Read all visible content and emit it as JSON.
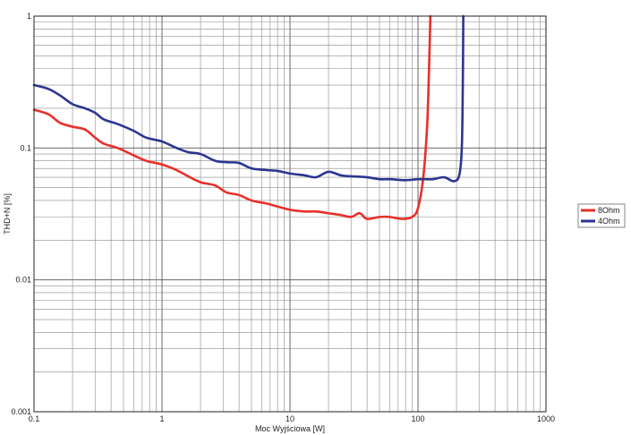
{
  "chart_data": {
    "type": "line",
    "title": "",
    "xlabel": "Moc Wyjściowa [W]",
    "ylabel": "THD+N [%]",
    "xscale": "log",
    "yscale": "log",
    "xlim": [
      0.1,
      1000
    ],
    "ylim": [
      0.001,
      1
    ],
    "grid": true,
    "legend_position": "right",
    "x_ticks": [
      "0.1",
      "1",
      "10",
      "100",
      "1000"
    ],
    "y_ticks": [
      "0.001",
      "0.01",
      "0.1",
      "1"
    ],
    "series": [
      {
        "name": "8Ohm",
        "color": "#e8302a",
        "points": [
          [
            0.1,
            0.195
          ],
          [
            0.13,
            0.18
          ],
          [
            0.16,
            0.155
          ],
          [
            0.2,
            0.145
          ],
          [
            0.25,
            0.138
          ],
          [
            0.3,
            0.12
          ],
          [
            0.35,
            0.108
          ],
          [
            0.45,
            0.1
          ],
          [
            0.6,
            0.088
          ],
          [
            0.75,
            0.08
          ],
          [
            1.0,
            0.075
          ],
          [
            1.3,
            0.068
          ],
          [
            1.6,
            0.061
          ],
          [
            2.0,
            0.055
          ],
          [
            2.6,
            0.052
          ],
          [
            3.2,
            0.046
          ],
          [
            4.0,
            0.044
          ],
          [
            5.0,
            0.04
          ],
          [
            6.5,
            0.038
          ],
          [
            8.0,
            0.036
          ],
          [
            10.0,
            0.034
          ],
          [
            13.0,
            0.033
          ],
          [
            16.0,
            0.033
          ],
          [
            20.0,
            0.032
          ],
          [
            25.0,
            0.031
          ],
          [
            30.0,
            0.03
          ],
          [
            35.0,
            0.032
          ],
          [
            40.0,
            0.029
          ],
          [
            50.0,
            0.03
          ],
          [
            60.0,
            0.03
          ],
          [
            75.0,
            0.029
          ],
          [
            90.0,
            0.03
          ],
          [
            100.0,
            0.035
          ],
          [
            110.0,
            0.06
          ],
          [
            118.0,
            0.15
          ],
          [
            122.0,
            0.4
          ],
          [
            125.0,
            1.0
          ]
        ]
      },
      {
        "name": "4Ohm",
        "color": "#2c3590",
        "points": [
          [
            0.1,
            0.3
          ],
          [
            0.13,
            0.28
          ],
          [
            0.16,
            0.25
          ],
          [
            0.2,
            0.215
          ],
          [
            0.25,
            0.2
          ],
          [
            0.3,
            0.185
          ],
          [
            0.35,
            0.165
          ],
          [
            0.45,
            0.152
          ],
          [
            0.6,
            0.135
          ],
          [
            0.75,
            0.12
          ],
          [
            1.0,
            0.112
          ],
          [
            1.3,
            0.1
          ],
          [
            1.6,
            0.093
          ],
          [
            2.0,
            0.09
          ],
          [
            2.6,
            0.08
          ],
          [
            3.2,
            0.078
          ],
          [
            4.0,
            0.077
          ],
          [
            5.0,
            0.07
          ],
          [
            6.5,
            0.068
          ],
          [
            8.0,
            0.067
          ],
          [
            10.0,
            0.064
          ],
          [
            13.0,
            0.062
          ],
          [
            16.0,
            0.06
          ],
          [
            20.0,
            0.066
          ],
          [
            25.0,
            0.062
          ],
          [
            30.0,
            0.061
          ],
          [
            40.0,
            0.06
          ],
          [
            50.0,
            0.058
          ],
          [
            60.0,
            0.058
          ],
          [
            80.0,
            0.057
          ],
          [
            100.0,
            0.058
          ],
          [
            130.0,
            0.058
          ],
          [
            160.0,
            0.06
          ],
          [
            190.0,
            0.056
          ],
          [
            210.0,
            0.062
          ],
          [
            220.0,
            0.1
          ],
          [
            224.0,
            0.3
          ],
          [
            226.0,
            1.0
          ]
        ]
      }
    ]
  }
}
